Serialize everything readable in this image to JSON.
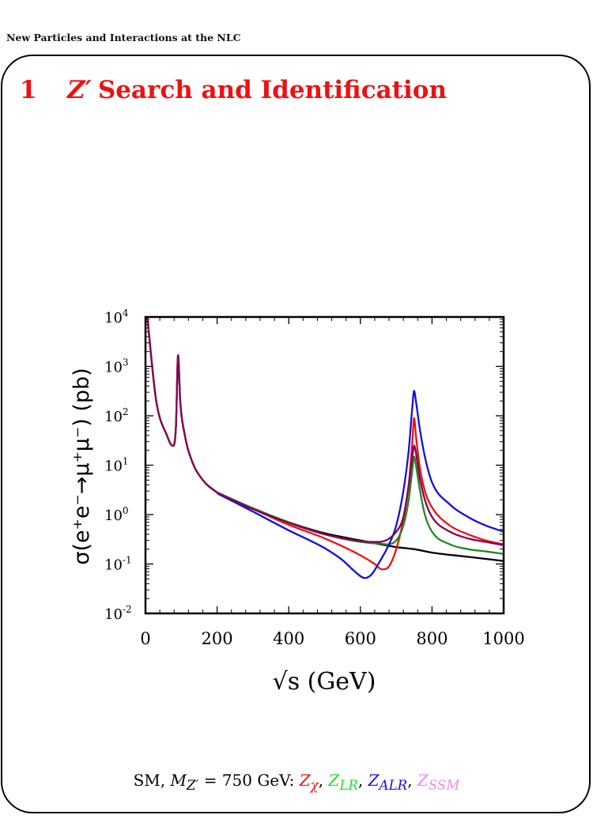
{
  "header": {
    "running_title": "New Particles and Interactions at the NLC"
  },
  "section": {
    "number": "1",
    "title_symbol": "Z′",
    "title_text": "Search and Identification"
  },
  "caption": {
    "sm": "SM,",
    "mass_symbol": "M",
    "mass_sub": "Z′",
    "mass_value": "= 750 GeV:",
    "models": [
      {
        "base": "Z",
        "sub": "χ",
        "color": "#ee1111"
      },
      {
        "base": "Z",
        "sub": "LR",
        "color": "#22dd22"
      },
      {
        "base": "Z",
        "sub": "ALR",
        "color": "#1111dd"
      },
      {
        "base": "Z",
        "sub": "SSM",
        "color": "#ee88ee"
      }
    ]
  },
  "chart_data": {
    "type": "line",
    "xlabel": "√s  (GeV)",
    "ylabel": "σ(e⁺e⁻→μ⁺μ⁻) (pb)",
    "xlim": [
      0,
      1000
    ],
    "ylim_log10": [
      -2,
      4
    ],
    "yscale": "log",
    "x_ticks": [
      "0",
      "200",
      "400",
      "600",
      "800",
      "1000"
    ],
    "y_ticks": [
      {
        "base": "10",
        "exp": "-2"
      },
      {
        "base": "10",
        "exp": "-1"
      },
      {
        "base": "10",
        "exp": "0"
      },
      {
        "base": "10",
        "exp": "1"
      },
      {
        "base": "10",
        "exp": "2"
      },
      {
        "base": "10",
        "exp": "3"
      },
      {
        "base": "10",
        "exp": "4"
      }
    ],
    "series": [
      {
        "color": "#000000",
        "x": [
          5,
          30,
          60,
          75,
          85,
          91,
          97,
          110,
          130,
          160,
          200,
          250,
          300,
          400,
          500,
          600,
          700,
          750,
          800,
          900,
          1000
        ],
        "y": [
          10000,
          200,
          40,
          25,
          60,
          1600,
          200,
          40,
          12,
          5,
          2.8,
          1.8,
          1.3,
          0.7,
          0.42,
          0.3,
          0.22,
          0.2,
          0.17,
          0.14,
          0.115
        ]
      },
      {
        "color": "#ee1111",
        "x": [
          200,
          300,
          400,
          500,
          600,
          640,
          660,
          680,
          700,
          720,
          735,
          745,
          750,
          755,
          765,
          780,
          800,
          850,
          900,
          950,
          1000
        ],
        "y": [
          2.8,
          1.3,
          0.62,
          0.33,
          0.15,
          0.1,
          0.078,
          0.09,
          0.2,
          0.8,
          4,
          30,
          90,
          40,
          10,
          3,
          1.4,
          0.6,
          0.4,
          0.3,
          0.25
        ]
      },
      {
        "color": "#228822",
        "x": [
          200,
          300,
          400,
          500,
          600,
          650,
          700,
          720,
          735,
          745,
          750,
          755,
          765,
          780,
          800,
          850,
          900,
          950,
          1000
        ],
        "y": [
          2.8,
          1.35,
          0.7,
          0.4,
          0.28,
          0.26,
          0.3,
          0.6,
          2,
          8,
          15,
          10,
          3.5,
          1,
          0.45,
          0.25,
          0.2,
          0.18,
          0.16
        ]
      },
      {
        "color": "#1111dd",
        "x": [
          200,
          300,
          400,
          500,
          550,
          590,
          612,
          630,
          650,
          680,
          700,
          720,
          735,
          745,
          750,
          755,
          765,
          780,
          800,
          850,
          900,
          950,
          1000
        ],
        "y": [
          2.7,
          1.15,
          0.48,
          0.21,
          0.12,
          0.065,
          0.052,
          0.06,
          0.1,
          0.25,
          0.6,
          3,
          20,
          150,
          320,
          200,
          60,
          15,
          4.5,
          1.6,
          0.9,
          0.6,
          0.45
        ]
      },
      {
        "color": "#880055",
        "x": [
          200,
          300,
          400,
          500,
          600,
          650,
          700,
          720,
          735,
          745,
          750,
          755,
          765,
          780,
          800,
          850,
          900,
          950,
          1000
        ],
        "y": [
          2.8,
          1.3,
          0.68,
          0.4,
          0.29,
          0.28,
          0.45,
          0.9,
          4,
          15,
          25,
          18,
          6,
          2,
          0.9,
          0.45,
          0.33,
          0.28,
          0.24
        ]
      },
      {
        "color": "#880055",
        "x": [
          5,
          30,
          60,
          75,
          85,
          91,
          97,
          110,
          130,
          160,
          200
        ],
        "y": [
          10000,
          200,
          40,
          25,
          60,
          1700,
          200,
          40,
          12,
          5,
          2.8
        ]
      }
    ]
  }
}
